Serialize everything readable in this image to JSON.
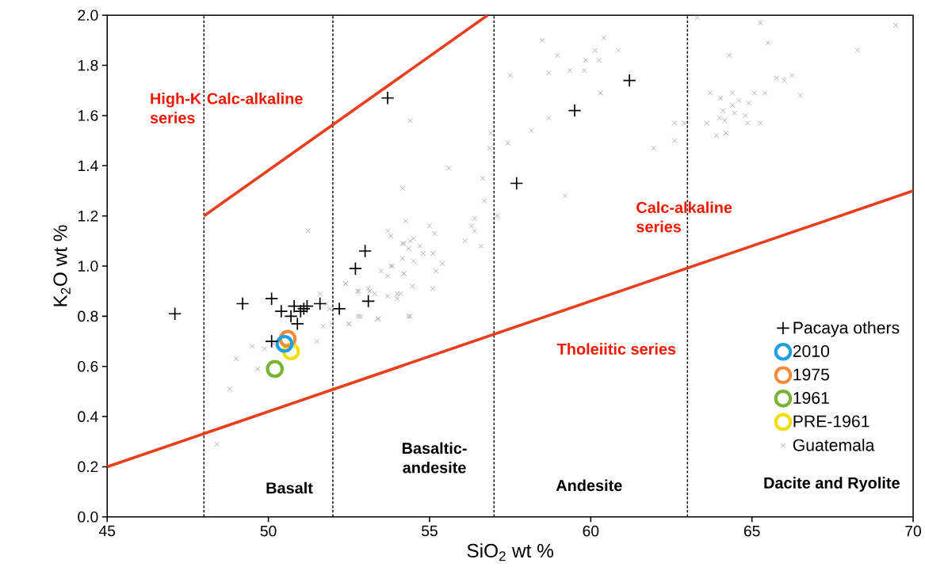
{
  "chart_data": {
    "type": "scatter",
    "xlabel": "SiO$_{2}$ wt %",
    "ylabel": "K$_{2}$O wt %",
    "xlim": [
      45,
      70
    ],
    "ylim": [
      0,
      2
    ],
    "xticks": [
      45,
      50,
      55,
      60,
      65,
      70
    ],
    "yticks": [
      {
        "value": 0,
        "label": "0.0"
      },
      {
        "value": 0.2,
        "label": "0.2"
      },
      {
        "value": 0.4,
        "label": "0.4"
      },
      {
        "value": 0.6,
        "label": "0.6"
      },
      {
        "value": 0.8,
        "label": "0.8"
      },
      {
        "value": 1.0,
        "label": "1.0"
      },
      {
        "value": 1.2,
        "label": "1.2"
      },
      {
        "value": 1.4,
        "label": "1.4"
      },
      {
        "value": 1.6,
        "label": "1.6"
      },
      {
        "value": 1.8,
        "label": "1.8"
      },
      {
        "value": 2.0,
        "label": "2.0"
      }
    ],
    "grid": false,
    "legend": "bottom right",
    "series": [
      {
        "type": "line",
        "color": "#e8401c",
        "marker": "none",
        "x": [
          45,
          70
        ],
        "values": [
          0.2,
          1.3
        ]
      },
      {
        "type": "line",
        "color": "#e8401c",
        "marker": "none",
        "x": [
          48,
          56.8
        ],
        "values": [
          1.2,
          2.0
        ]
      },
      {
        "name": "Pacaya others",
        "color": "#000000",
        "marker": "cross",
        "x": [
          47.1,
          49.2,
          50.1,
          50.1,
          50.4,
          50.7,
          50.8,
          50.9,
          51.0,
          51.1,
          51.2,
          51.6,
          52.2,
          52.7,
          53.0,
          53.1,
          53.7,
          57.7,
          59.5,
          61.2
        ],
        "values": [
          0.81,
          0.85,
          0.87,
          0.7,
          0.82,
          0.8,
          0.84,
          0.77,
          0.82,
          0.83,
          0.84,
          0.85,
          0.83,
          0.99,
          1.06,
          0.86,
          1.67,
          1.33,
          1.62,
          1.74
        ]
      },
      {
        "name": "2010",
        "color": "#1ea0e0",
        "marker": "circle",
        "x": [
          50.5
        ],
        "values": [
          0.69
        ]
      },
      {
        "name": "1975",
        "color": "#f08c3c",
        "marker": "circle",
        "x": [
          50.6
        ],
        "values": [
          0.71
        ]
      },
      {
        "name": "1961",
        "color": "#78b432",
        "marker": "circle",
        "x": [
          50.2
        ],
        "values": [
          0.59
        ]
      },
      {
        "name": "PRE-1961",
        "color": "#f0e000",
        "marker": "circle",
        "x": [
          50.7
        ],
        "values": [
          0.66
        ]
      },
      {
        "name": "Guatemala",
        "color": "#aaaaaa",
        "marker": "x",
        "x": [
          51.23,
          49.5,
          49.88,
          49.0,
          49.67,
          48.8,
          48.4,
          50.16,
          51.5,
          51.7,
          51.96,
          52.5,
          52.86,
          53.4,
          51.6,
          51.8,
          51.9,
          52.4,
          52.76,
          53.1,
          53.3,
          53.7,
          54.0,
          53.5,
          53.8,
          54.2,
          54.2,
          54.35,
          54.4,
          54.16,
          55.6,
          56.9,
          56.86,
          56.65,
          56.7,
          57.1,
          56.4,
          56.3,
          56.4,
          56.1,
          56.6,
          54.26,
          55.0,
          55.16,
          53.7,
          53.8,
          54.16,
          54.4,
          54.5,
          54.7,
          54.35,
          54.8,
          55.1,
          54.5,
          55.4,
          54.16,
          53.85,
          54.2,
          55.2,
          53.7,
          54.47,
          55.1,
          54.1,
          54.0,
          53.4,
          54.4,
          52.8,
          52.5,
          53.14,
          52.8,
          52.4,
          57.5,
          58.5,
          58.97,
          58.7,
          59.35,
          59.8,
          59.84,
          60.13,
          60.25,
          60.4,
          60.86,
          60.3,
          58.7,
          58.16,
          57.43,
          59.2,
          65.26,
          65.5,
          64.3,
          69.46,
          68.27,
          65.76,
          66.0,
          66.24,
          66.5,
          63.7,
          64.03,
          64.4,
          64.6,
          64.9,
          65.08,
          65.4,
          64.1,
          64.4,
          64.46,
          64.8,
          63.99,
          64.15,
          63.6,
          64.86,
          65.26,
          63.9,
          64.2,
          62.6,
          62.9,
          62.6,
          61.95,
          63.3
        ],
        "values": [
          1.14,
          0.68,
          0.67,
          0.63,
          0.59,
          0.51,
          0.29,
          0.69,
          0.7,
          0.76,
          0.77,
          0.77,
          0.8,
          0.79,
          0.89,
          0.85,
          0.83,
          0.93,
          0.9,
          0.91,
          0.89,
          0.88,
          0.89,
          0.98,
          1.0,
          0.97,
          1.09,
          0.8,
          1.58,
          1.31,
          1.39,
          1.53,
          1.47,
          1.35,
          1.26,
          1.2,
          1.19,
          1.16,
          1.14,
          1.1,
          1.08,
          1.18,
          1.16,
          1.13,
          1.14,
          1.12,
          1.09,
          1.1,
          1.11,
          1.08,
          1.07,
          1.05,
          1.05,
          1.02,
          1.01,
          1.03,
          1.0,
          0.97,
          0.98,
          0.96,
          0.92,
          0.91,
          0.89,
          0.87,
          0.79,
          0.8,
          0.8,
          0.77,
          0.9,
          0.9,
          0.93,
          1.76,
          1.9,
          1.84,
          1.77,
          1.78,
          1.78,
          1.82,
          1.86,
          1.82,
          1.91,
          1.86,
          1.69,
          1.59,
          1.54,
          1.49,
          1.28,
          1.97,
          1.89,
          1.84,
          1.96,
          1.86,
          1.75,
          1.74,
          1.76,
          1.68,
          1.69,
          1.67,
          1.69,
          1.66,
          1.65,
          1.69,
          1.69,
          1.62,
          1.64,
          1.61,
          1.6,
          1.59,
          1.58,
          1.57,
          1.57,
          1.57,
          1.52,
          1.53,
          1.57,
          1.57,
          1.5,
          1.47,
          1.99
        ]
      }
    ],
    "ref_lines": [
      {
        "axis": "x",
        "value": 48,
        "color": "#000000",
        "line_style": "dashed"
      },
      {
        "axis": "x",
        "value": 52,
        "color": "#000000",
        "line_style": "dashed"
      },
      {
        "axis": "x",
        "value": 57,
        "color": "#000000",
        "line_style": "dashed"
      },
      {
        "axis": "x",
        "value": 63,
        "color": "#000000",
        "line_style": "dashed"
      }
    ],
    "annotations": [
      "High-K Calc-alkaline series",
      "Calc-alkaline series",
      "Tholeiitic series",
      "Basalt",
      "Basaltic-andesite",
      "Andesite",
      "Dacite and Ryolite"
    ]
  }
}
